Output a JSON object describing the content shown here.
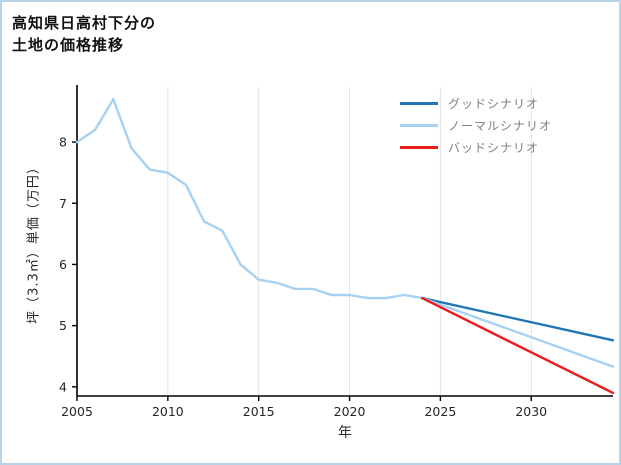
{
  "page": {
    "background": "#ffffff",
    "border_color": "#b8d2e6"
  },
  "title": {
    "line1": "高知県日高村下分の",
    "line2": "土地の価格推移"
  },
  "chart_data": {
    "type": "line",
    "title": "高知県日高村下分の土地の価格推移",
    "xlabel": "年",
    "ylabel": "坪（3.3㎡）単価（万円）",
    "xlim": [
      2005,
      2034.5
    ],
    "ylim": [
      3.85,
      8.9
    ],
    "xticks": [
      2005,
      2010,
      2015,
      2020,
      2025,
      2030
    ],
    "yticks": [
      4,
      5,
      6,
      7,
      8
    ],
    "grid": "vertical-only",
    "grid_color": "#e3e3e3",
    "axis_color": "#000000",
    "tick_label_color": "#262626",
    "legend_text_color": "#808080",
    "legend_position": "upper-right",
    "series": [
      {
        "name": "price-history",
        "color": "#a6d1f2",
        "width": 2.4,
        "x": [
          2005,
          2006,
          2007,
          2008,
          2009,
          2010,
          2011,
          2012,
          2013,
          2014,
          2015,
          2016,
          2017,
          2018,
          2019,
          2020,
          2021,
          2022,
          2023,
          2024
        ],
        "y": [
          8.0,
          8.2,
          8.7,
          7.9,
          7.55,
          7.5,
          7.3,
          6.7,
          6.55,
          6.0,
          5.75,
          5.7,
          5.6,
          5.6,
          5.5,
          5.5,
          5.45,
          5.45,
          5.5,
          5.45
        ]
      },
      {
        "name": "グッドシナリオ",
        "color": "#1f77b4",
        "width": 2.4,
        "x": [
          2024,
          2034.5
        ],
        "y": [
          5.45,
          4.76
        ]
      },
      {
        "name": "ノーマルシナリオ",
        "color": "#a6d1f2",
        "width": 2.4,
        "x": [
          2024,
          2034.5
        ],
        "y": [
          5.45,
          4.33
        ]
      },
      {
        "name": "バッドシナリオ",
        "color": "#ea1c1c",
        "width": 2.4,
        "x": [
          2024,
          2034.5
        ],
        "y": [
          5.45,
          3.9
        ]
      }
    ],
    "legend": [
      {
        "label": "グッドシナリオ",
        "color": "#1f77b4"
      },
      {
        "label": "ノーマルシナリオ",
        "color": "#a6d1f2"
      },
      {
        "label": "バッドシナリオ",
        "color": "#ea1c1c"
      }
    ]
  }
}
